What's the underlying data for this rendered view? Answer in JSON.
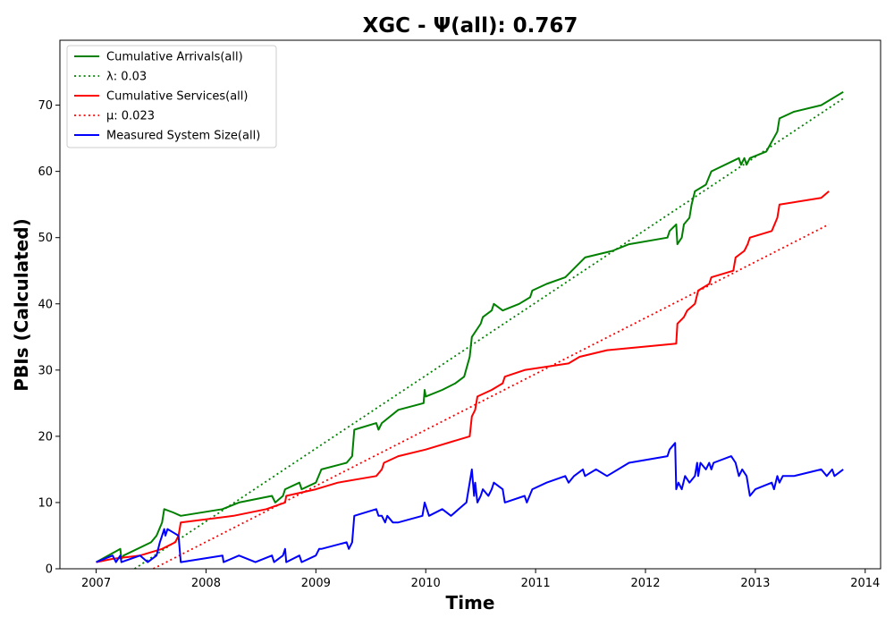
{
  "chart_data": {
    "type": "line",
    "title": "XGC -  Ψ(all): 0.767",
    "xlabel": "Time",
    "ylabel": "PBIs (Calculated)",
    "xlim": [
      2006.67,
      2014.14
    ],
    "ylim": [
      0,
      79.8
    ],
    "x_ticks": [
      2007,
      2008,
      2009,
      2010,
      2011,
      2012,
      2013,
      2014
    ],
    "x_tick_labels": [
      "2007",
      "2008",
      "2009",
      "2010",
      "2011",
      "2012",
      "2013",
      "2014"
    ],
    "y_ticks": [
      0,
      10,
      20,
      30,
      40,
      50,
      60,
      70
    ],
    "y_tick_labels": [
      "0",
      "10",
      "20",
      "30",
      "40",
      "50",
      "60",
      "70"
    ],
    "grid": false,
    "legend_position": "top-left",
    "series": [
      {
        "name": "Cumulative Arrivals(all)",
        "color": "#008000",
        "style": "solid",
        "points": [
          [
            2007.0,
            1
          ],
          [
            2007.22,
            3
          ],
          [
            2007.23,
            1.5
          ],
          [
            2007.25,
            2
          ],
          [
            2007.5,
            4
          ],
          [
            2007.55,
            5
          ],
          [
            2007.6,
            7
          ],
          [
            2007.62,
            9
          ],
          [
            2007.7,
            8.5
          ],
          [
            2007.77,
            8
          ],
          [
            2008.15,
            9
          ],
          [
            2008.3,
            10
          ],
          [
            2008.6,
            11
          ],
          [
            2008.63,
            10
          ],
          [
            2008.7,
            11
          ],
          [
            2008.72,
            12
          ],
          [
            2008.85,
            13
          ],
          [
            2008.87,
            12
          ],
          [
            2009.0,
            13
          ],
          [
            2009.05,
            15
          ],
          [
            2009.28,
            16
          ],
          [
            2009.33,
            17
          ],
          [
            2009.35,
            21
          ],
          [
            2009.55,
            22
          ],
          [
            2009.57,
            21
          ],
          [
            2009.6,
            22
          ],
          [
            2009.75,
            24
          ],
          [
            2009.98,
            25
          ],
          [
            2009.99,
            27
          ],
          [
            2010.0,
            26
          ],
          [
            2010.15,
            27
          ],
          [
            2010.27,
            28
          ],
          [
            2010.35,
            29
          ],
          [
            2010.4,
            32
          ],
          [
            2010.42,
            35
          ],
          [
            2010.5,
            37
          ],
          [
            2010.52,
            38
          ],
          [
            2010.6,
            39
          ],
          [
            2010.62,
            40
          ],
          [
            2010.7,
            39
          ],
          [
            2010.85,
            40
          ],
          [
            2010.95,
            41
          ],
          [
            2010.97,
            42
          ],
          [
            2011.1,
            43
          ],
          [
            2011.27,
            44
          ],
          [
            2011.45,
            47
          ],
          [
            2011.7,
            48
          ],
          [
            2011.85,
            49
          ],
          [
            2012.2,
            50
          ],
          [
            2012.22,
            51
          ],
          [
            2012.28,
            52
          ],
          [
            2012.29,
            49
          ],
          [
            2012.33,
            50
          ],
          [
            2012.35,
            52
          ],
          [
            2012.4,
            53
          ],
          [
            2012.42,
            55
          ],
          [
            2012.45,
            57
          ],
          [
            2012.55,
            58
          ],
          [
            2012.6,
            60
          ],
          [
            2012.85,
            62
          ],
          [
            2012.87,
            61
          ],
          [
            2012.9,
            62
          ],
          [
            2012.92,
            61
          ],
          [
            2012.95,
            62
          ],
          [
            2013.1,
            63
          ],
          [
            2013.2,
            66
          ],
          [
            2013.22,
            68
          ],
          [
            2013.35,
            69
          ],
          [
            2013.6,
            70
          ],
          [
            2013.8,
            72
          ]
        ]
      },
      {
        "name": "λ: 0.03",
        "color": "#008000",
        "style": "dotted",
        "points": [
          [
            2007.35,
            0
          ],
          [
            2013.8,
            71
          ]
        ]
      },
      {
        "name": "Cumulative Services(all)",
        "color": "#ff0000",
        "style": "solid",
        "points": [
          [
            2007.0,
            1
          ],
          [
            2007.15,
            1.5
          ],
          [
            2007.4,
            2
          ],
          [
            2007.6,
            3
          ],
          [
            2007.72,
            4
          ],
          [
            2007.75,
            5
          ],
          [
            2007.77,
            7
          ],
          [
            2008.25,
            8
          ],
          [
            2008.55,
            9
          ],
          [
            2008.72,
            10
          ],
          [
            2008.73,
            11
          ],
          [
            2009.0,
            12
          ],
          [
            2009.2,
            13
          ],
          [
            2009.55,
            14
          ],
          [
            2009.6,
            15
          ],
          [
            2009.62,
            16
          ],
          [
            2009.75,
            17
          ],
          [
            2010.0,
            18
          ],
          [
            2010.4,
            20
          ],
          [
            2010.42,
            23
          ],
          [
            2010.45,
            24
          ],
          [
            2010.47,
            26
          ],
          [
            2010.6,
            27
          ],
          [
            2010.7,
            28
          ],
          [
            2010.72,
            29
          ],
          [
            2010.9,
            30
          ],
          [
            2011.3,
            31
          ],
          [
            2011.4,
            32
          ],
          [
            2011.65,
            33
          ],
          [
            2012.28,
            34
          ],
          [
            2012.29,
            37
          ],
          [
            2012.35,
            38
          ],
          [
            2012.38,
            39
          ],
          [
            2012.45,
            40
          ],
          [
            2012.48,
            42
          ],
          [
            2012.58,
            43
          ],
          [
            2012.6,
            44
          ],
          [
            2012.8,
            45
          ],
          [
            2012.82,
            47
          ],
          [
            2012.9,
            48
          ],
          [
            2012.93,
            49
          ],
          [
            2012.95,
            50
          ],
          [
            2013.15,
            51
          ],
          [
            2013.2,
            53
          ],
          [
            2013.22,
            55
          ],
          [
            2013.6,
            56
          ],
          [
            2013.67,
            57
          ]
        ]
      },
      {
        "name": "μ: 0.023",
        "color": "#ff0000",
        "style": "dotted",
        "points": [
          [
            2007.52,
            0
          ],
          [
            2013.67,
            52
          ]
        ]
      },
      {
        "name": "Measured System Size(all)",
        "color": "#0000ff",
        "style": "solid",
        "points": [
          [
            2007.0,
            1
          ],
          [
            2007.15,
            2
          ],
          [
            2007.18,
            1
          ],
          [
            2007.22,
            2
          ],
          [
            2007.23,
            1
          ],
          [
            2007.4,
            2
          ],
          [
            2007.47,
            1
          ],
          [
            2007.55,
            2
          ],
          [
            2007.58,
            4
          ],
          [
            2007.6,
            5
          ],
          [
            2007.62,
            6
          ],
          [
            2007.63,
            5
          ],
          [
            2007.65,
            6
          ],
          [
            2007.7,
            5.5
          ],
          [
            2007.75,
            5
          ],
          [
            2007.77,
            1
          ],
          [
            2008.15,
            2
          ],
          [
            2008.16,
            1
          ],
          [
            2008.3,
            2
          ],
          [
            2008.45,
            1
          ],
          [
            2008.6,
            2
          ],
          [
            2008.62,
            1
          ],
          [
            2008.7,
            2
          ],
          [
            2008.72,
            3
          ],
          [
            2008.73,
            1
          ],
          [
            2008.85,
            2
          ],
          [
            2008.87,
            1
          ],
          [
            2009.0,
            2
          ],
          [
            2009.03,
            3
          ],
          [
            2009.05,
            3
          ],
          [
            2009.28,
            4
          ],
          [
            2009.3,
            3
          ],
          [
            2009.33,
            4
          ],
          [
            2009.35,
            8
          ],
          [
            2009.55,
            9
          ],
          [
            2009.57,
            8
          ],
          [
            2009.6,
            8
          ],
          [
            2009.63,
            7
          ],
          [
            2009.65,
            8
          ],
          [
            2009.7,
            7
          ],
          [
            2009.75,
            7
          ],
          [
            2009.97,
            8
          ],
          [
            2009.99,
            10
          ],
          [
            2010.03,
            8
          ],
          [
            2010.15,
            9
          ],
          [
            2010.23,
            8
          ],
          [
            2010.3,
            9
          ],
          [
            2010.37,
            10
          ],
          [
            2010.4,
            13
          ],
          [
            2010.42,
            15
          ],
          [
            2010.44,
            11
          ],
          [
            2010.45,
            13
          ],
          [
            2010.47,
            10
          ],
          [
            2010.5,
            11
          ],
          [
            2010.52,
            12
          ],
          [
            2010.57,
            11
          ],
          [
            2010.6,
            12
          ],
          [
            2010.62,
            13
          ],
          [
            2010.7,
            12
          ],
          [
            2010.72,
            10
          ],
          [
            2010.9,
            11
          ],
          [
            2010.92,
            10
          ],
          [
            2010.97,
            12
          ],
          [
            2011.1,
            13
          ],
          [
            2011.27,
            14
          ],
          [
            2011.3,
            13
          ],
          [
            2011.35,
            14
          ],
          [
            2011.43,
            15
          ],
          [
            2011.45,
            14
          ],
          [
            2011.55,
            15
          ],
          [
            2011.65,
            14
          ],
          [
            2011.85,
            16
          ],
          [
            2012.2,
            17
          ],
          [
            2012.22,
            18
          ],
          [
            2012.27,
            19
          ],
          [
            2012.28,
            12
          ],
          [
            2012.3,
            13
          ],
          [
            2012.33,
            12
          ],
          [
            2012.36,
            14
          ],
          [
            2012.4,
            13
          ],
          [
            2012.45,
            14
          ],
          [
            2012.47,
            16
          ],
          [
            2012.48,
            14
          ],
          [
            2012.5,
            16
          ],
          [
            2012.55,
            15
          ],
          [
            2012.58,
            16
          ],
          [
            2012.6,
            15
          ],
          [
            2012.62,
            16
          ],
          [
            2012.78,
            17
          ],
          [
            2012.82,
            16
          ],
          [
            2012.85,
            14
          ],
          [
            2012.88,
            15
          ],
          [
            2012.92,
            14
          ],
          [
            2012.95,
            11
          ],
          [
            2013.0,
            12
          ],
          [
            2013.15,
            13
          ],
          [
            2013.17,
            12
          ],
          [
            2013.2,
            14
          ],
          [
            2013.22,
            13
          ],
          [
            2013.25,
            14
          ],
          [
            2013.35,
            14
          ],
          [
            2013.6,
            15
          ],
          [
            2013.65,
            14
          ],
          [
            2013.7,
            15
          ],
          [
            2013.72,
            14
          ],
          [
            2013.8,
            15
          ]
        ]
      }
    ]
  }
}
